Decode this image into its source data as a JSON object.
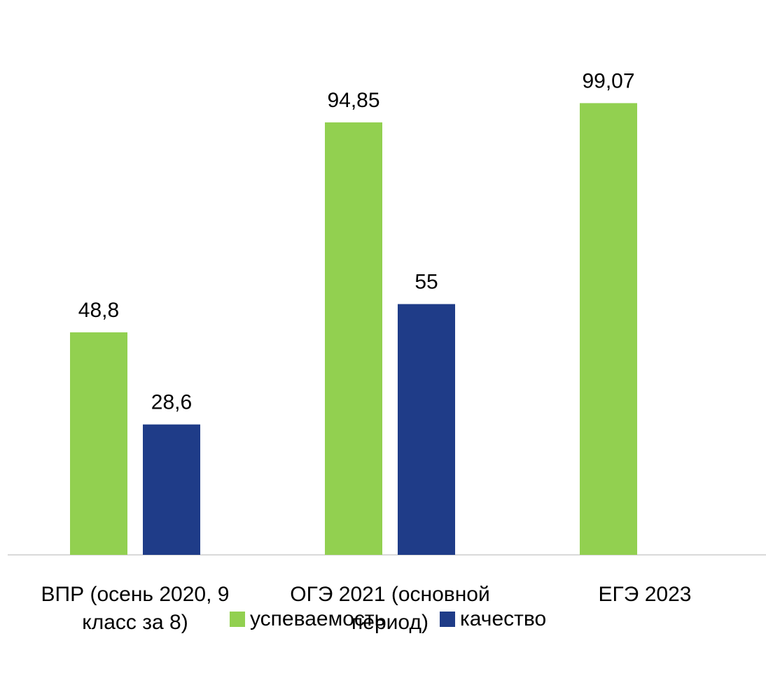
{
  "chart_data": {
    "type": "bar",
    "categories": [
      "ВПР (осень 2020, 9 класс за 8)",
      "ОГЭ 2021 (основной период)",
      "ЕГЭ 2023"
    ],
    "series": [
      {
        "name": "успеваемость",
        "color": "#92d050",
        "values": [
          48.8,
          94.85,
          99.07
        ],
        "value_labels": [
          "48,8",
          "94,85",
          "99,07"
        ]
      },
      {
        "name": "качество",
        "color": "#1f3c88",
        "values": [
          28.6,
          55,
          null
        ],
        "value_labels": [
          "28,6",
          "55",
          null
        ]
      }
    ],
    "ylim": [
      0,
      120
    ],
    "legend": "bottom"
  }
}
